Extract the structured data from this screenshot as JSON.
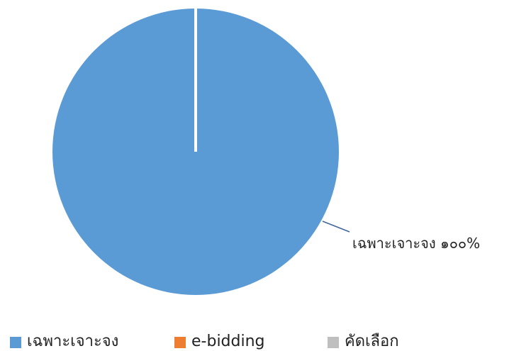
{
  "chart_data": {
    "type": "pie",
    "categories": [
      "เฉพาะเจาะจง",
      "e-bidding",
      "คัดเลือก"
    ],
    "values": [
      100,
      0,
      0
    ],
    "value_labels": [
      "๑๐๐%",
      null,
      null
    ],
    "colors": [
      "#5b9bd5",
      "#ed7d31",
      "#bfbfbf"
    ],
    "legend": "bottom"
  }
}
